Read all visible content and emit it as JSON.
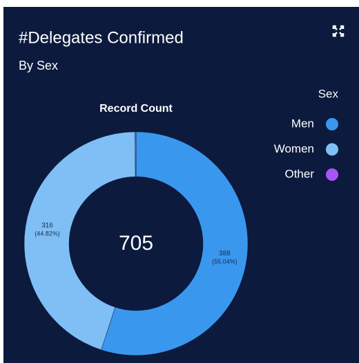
{
  "chart_data": {
    "type": "donut",
    "title": "#Delegates Confirmed",
    "subtitle": "By Sex",
    "chart_label": "Record Count",
    "total": 705,
    "legend_title": "Sex",
    "legend": "top-right",
    "categories": [
      "Men",
      "Women",
      "Other"
    ],
    "values": [
      388,
      316,
      1
    ],
    "percent_labels": [
      "(55.04%)",
      "(44.82%)",
      null
    ],
    "show_value_labels": [
      true,
      true,
      false
    ],
    "colors": [
      "#3a97ee",
      "#7fbff5",
      "#a855f7"
    ]
  }
}
